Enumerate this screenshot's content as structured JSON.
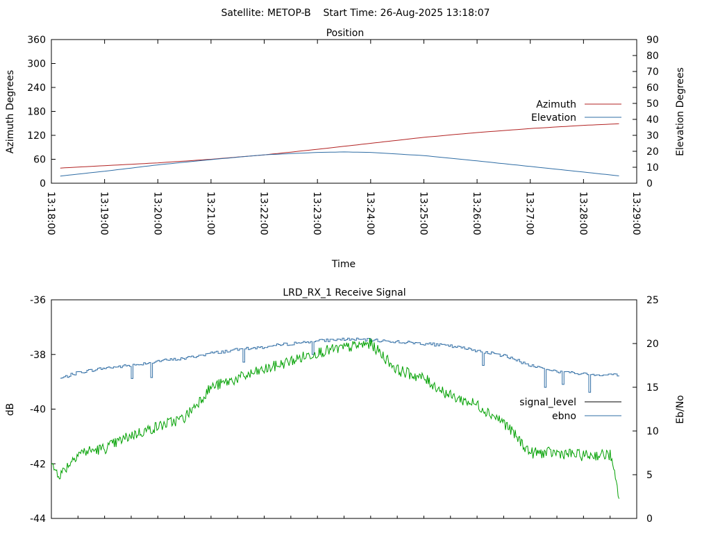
{
  "header": {
    "text": "Satellite: METOP-B    Start Time: 26-Aug-2025 13:18:07"
  },
  "chart_data": [
    {
      "type": "line",
      "title": "Position",
      "xlabel": "Time",
      "ylabel": "Azimuth Degrees",
      "y2label": "Elevation Degrees",
      "xlim": [
        "13:18:00",
        "13:29:00"
      ],
      "ylim": [
        0,
        360
      ],
      "y2lim": [
        0,
        90
      ],
      "x_ticks": [
        "13:18:00",
        "13:19:00",
        "13:20:00",
        "13:21:00",
        "13:22:00",
        "13:23:00",
        "13:24:00",
        "13:25:00",
        "13:26:00",
        "13:27:00",
        "13:28:00",
        "13:29:00"
      ],
      "y_ticks": [
        "0",
        "60",
        "120",
        "180",
        "240",
        "300",
        "360"
      ],
      "y2_ticks": [
        "0",
        "10",
        "20",
        "30",
        "40",
        "50",
        "60",
        "70",
        "80",
        "90"
      ],
      "legend_position": "right",
      "grid": false,
      "series": [
        {
          "name": "Azimuth",
          "axis": "left",
          "color": "#b22222",
          "x": [
            "13:18:10",
            "13:19:00",
            "13:20:00",
            "13:21:00",
            "13:22:00",
            "13:23:00",
            "13:24:00",
            "13:25:00",
            "13:26:00",
            "13:27:00",
            "13:28:00",
            "13:28:40"
          ],
          "values": [
            38,
            44,
            51,
            60,
            71,
            85,
            100,
            115,
            127,
            137,
            145,
            149
          ]
        },
        {
          "name": "Elevation",
          "axis": "right",
          "color": "#2e6ca4",
          "x": [
            "13:18:10",
            "13:19:00",
            "13:20:00",
            "13:21:00",
            "13:22:00",
            "13:23:00",
            "13:23:30",
            "13:24:00",
            "13:25:00",
            "13:26:00",
            "13:27:00",
            "13:28:00",
            "13:28:40"
          ],
          "values": [
            4.5,
            7.5,
            11.5,
            14.8,
            17.8,
            19.3,
            19.6,
            19.3,
            17.3,
            14.0,
            10.5,
            7.0,
            4.6
          ]
        }
      ]
    },
    {
      "type": "line",
      "title": "LRD_RX_1 Receive Signal",
      "ylabel": "dB",
      "y2label": "Eb/No",
      "xlim": [
        "13:18:00",
        "13:29:00"
      ],
      "ylim": [
        -44,
        -36
      ],
      "y2lim": [
        0,
        25
      ],
      "y_ticks": [
        "-44",
        "-42",
        "-40",
        "-38",
        "-36"
      ],
      "y2_ticks": [
        "0",
        "5",
        "10",
        "15",
        "20",
        "25"
      ],
      "legend_position": "right",
      "grid": false,
      "series": [
        {
          "name": "signal_level",
          "axis": "left",
          "color": "#000000",
          "x": [],
          "values": []
        },
        {
          "name": "ebno",
          "axis": "right",
          "color": "#2e6ca4",
          "x": [
            "13:18:10",
            "13:18:30",
            "13:19:00",
            "13:19:30",
            "13:20:00",
            "13:20:30",
            "13:21:00",
            "13:21:30",
            "13:22:00",
            "13:22:30",
            "13:23:00",
            "13:23:30",
            "13:24:00",
            "13:24:30",
            "13:25:00",
            "13:25:30",
            "13:26:00",
            "13:26:30",
            "13:27:00",
            "13:27:30",
            "13:28:00",
            "13:28:40"
          ],
          "values": [
            16.0,
            16.7,
            17.2,
            17.5,
            18.0,
            18.3,
            18.9,
            19.3,
            19.6,
            20.0,
            20.3,
            20.5,
            20.4,
            20.2,
            20.0,
            19.7,
            19.2,
            18.6,
            17.5,
            16.8,
            16.5,
            16.4
          ]
        },
        {
          "name": "",
          "axis": "right",
          "color": "#00a000",
          "x": [
            "13:18:00",
            "13:18:10",
            "13:18:30",
            "13:19:00",
            "13:19:30",
            "13:20:00",
            "13:20:30",
            "13:21:00",
            "13:21:30",
            "13:22:00",
            "13:22:30",
            "13:23:00",
            "13:23:30",
            "13:24:00",
            "13:24:30",
            "13:25:00",
            "13:25:30",
            "13:26:00",
            "13:26:30",
            "13:27:00",
            "13:27:30",
            "13:28:00",
            "13:28:30",
            "13:28:40"
          ],
          "values": [
            6.0,
            5.0,
            7.5,
            8.0,
            9.5,
            10.5,
            11.5,
            15.0,
            16.0,
            17.0,
            18.0,
            19.0,
            19.5,
            20.0,
            17.0,
            16.0,
            14.0,
            13.0,
            11.0,
            7.5,
            7.5,
            7.2,
            7.3,
            2.5
          ]
        }
      ]
    }
  ]
}
